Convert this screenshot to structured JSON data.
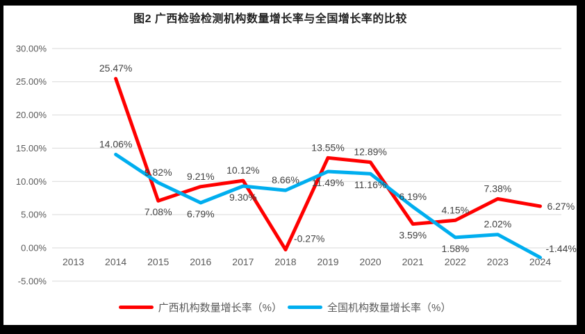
{
  "title": "图2 广西检验检测机构数量增长率与全国增长率的比较",
  "colors": {
    "guangxi_line": "#FF0000",
    "national_line": "#00AEEF",
    "gridline": "#D9D9D9",
    "tick_text": "#595959",
    "data_label_text": "#404040",
    "title_text": "#1F1F1F",
    "frame": "#000000"
  },
  "chart_data": {
    "type": "line",
    "categories": [
      "2013",
      "2014",
      "2015",
      "2016",
      "2017",
      "2018",
      "2019",
      "2020",
      "2021",
      "2022",
      "2023",
      "2024"
    ],
    "series": [
      {
        "name": "广西机构数量增长率（%）",
        "color": "#FF0000",
        "values": [
          null,
          25.47,
          7.08,
          9.21,
          10.12,
          -0.27,
          13.55,
          12.89,
          3.59,
          4.15,
          7.38,
          6.27
        ],
        "labels": [
          null,
          "25.47%",
          "7.08%",
          "9.21%",
          "10.12%",
          "-0.27%",
          "13.55%",
          "12.89%",
          "3.59%",
          "4.15%",
          "7.38%",
          "6.27%"
        ],
        "label_pos": [
          null,
          "above",
          "below",
          "above",
          "above",
          "above-right",
          "above",
          "above",
          "below",
          "above",
          "above",
          "right"
        ]
      },
      {
        "name": "全国机构数量增长率（%）",
        "color": "#00AEEF",
        "values": [
          null,
          14.06,
          9.82,
          6.79,
          9.3,
          8.66,
          11.49,
          11.16,
          6.19,
          1.58,
          2.02,
          -1.44
        ],
        "labels": [
          null,
          "14.06%",
          "9.82%",
          "6.79%",
          "9.30%",
          "8.66%",
          "11.49%",
          "11.16%",
          "6.19%",
          "1.58%",
          "2.02%",
          "-1.44%"
        ],
        "label_pos": [
          null,
          "above",
          "above",
          "below",
          "below",
          "above",
          "below",
          "below",
          "above",
          "below",
          "above",
          "right-above"
        ]
      }
    ],
    "yticks": [
      "30.00%",
      "25.00%",
      "20.00%",
      "15.00%",
      "10.00%",
      "5.00%",
      "0.00%",
      "-5.00%"
    ],
    "ylim": [
      -5,
      30
    ],
    "ytick_step": 5,
    "xlabel": "",
    "ylabel": "",
    "grid": true,
    "legend_position": "bottom"
  },
  "legend": {
    "items": [
      {
        "label": "广西机构数量增长率（%）"
      },
      {
        "label": "全国机构数量增长率（%）"
      }
    ]
  }
}
